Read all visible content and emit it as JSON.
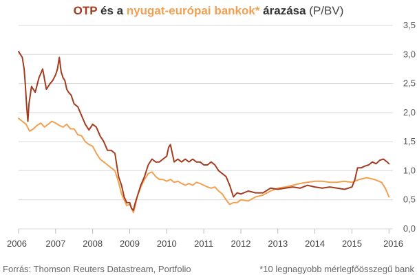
{
  "chart_data": {
    "type": "line",
    "title_parts": [
      {
        "text": "OTP",
        "role": "otp"
      },
      {
        "text": " és a ",
        "role": "plain"
      },
      {
        "text": "nyugat-európai bankok*",
        "role": "west"
      },
      {
        "text": " árazása",
        "role": "plain"
      },
      {
        "text": " (P/BV)",
        "role": "light"
      }
    ],
    "xlabel": "",
    "ylabel": "",
    "x_ticks": [
      "2006",
      "2007",
      "2008",
      "2009",
      "2010",
      "2011",
      "2012",
      "2013",
      "2014",
      "2015",
      "2016"
    ],
    "y_ticks": [
      "0,0",
      "0,5",
      "1,0",
      "1,5",
      "2,0",
      "2,5",
      "3,0",
      "3,5"
    ],
    "xlim": [
      2006,
      2016.05
    ],
    "ylim": [
      0,
      3.5
    ],
    "series": [
      {
        "name": "OTP",
        "color": "#a33b1e",
        "x": [
          2006.0,
          2006.05,
          2006.1,
          2006.15,
          2006.18,
          2006.22,
          2006.25,
          2006.28,
          2006.35,
          2006.45,
          2006.55,
          2006.65,
          2006.75,
          2006.85,
          2006.92,
          2007.0,
          2007.05,
          2007.1,
          2007.15,
          2007.2,
          2007.25,
          2007.3,
          2007.35,
          2007.42,
          2007.5,
          2007.6,
          2007.7,
          2007.8,
          2007.9,
          2008.0,
          2008.1,
          2008.2,
          2008.3,
          2008.4,
          2008.5,
          2008.6,
          2008.7,
          2008.78,
          2008.85,
          2008.92,
          2009.0,
          2009.05,
          2009.1,
          2009.15,
          2009.2,
          2009.3,
          2009.4,
          2009.5,
          2009.6,
          2009.7,
          2009.8,
          2009.9,
          2010.0,
          2010.05,
          2010.1,
          2010.15,
          2010.2,
          2010.3,
          2010.4,
          2010.5,
          2010.6,
          2010.7,
          2010.8,
          2010.9,
          2011.0,
          2011.1,
          2011.2,
          2011.3,
          2011.4,
          2011.5,
          2011.6,
          2011.7,
          2011.8,
          2011.9,
          2012.0,
          2012.2,
          2012.4,
          2012.6,
          2012.8,
          2013.0,
          2013.2,
          2013.4,
          2013.6,
          2013.8,
          2014.0,
          2014.2,
          2014.4,
          2014.6,
          2014.8,
          2014.9,
          2015.0,
          2015.08,
          2015.15,
          2015.25,
          2015.35,
          2015.45,
          2015.55,
          2015.65,
          2015.75,
          2015.85,
          2015.95,
          2016.0
        ],
        "values": [
          3.05,
          3.0,
          2.95,
          2.75,
          2.5,
          2.1,
          1.85,
          2.15,
          2.45,
          2.35,
          2.6,
          2.75,
          2.4,
          2.5,
          2.55,
          2.65,
          2.75,
          2.95,
          2.7,
          2.6,
          2.55,
          2.4,
          2.35,
          2.3,
          2.15,
          2.1,
          1.95,
          1.8,
          1.7,
          1.8,
          1.75,
          1.6,
          1.5,
          1.35,
          1.35,
          1.3,
          0.9,
          0.75,
          0.55,
          0.45,
          0.45,
          0.35,
          0.32,
          0.45,
          0.55,
          0.75,
          0.9,
          1.1,
          1.2,
          1.15,
          1.15,
          1.2,
          1.25,
          1.4,
          1.45,
          1.3,
          1.15,
          1.2,
          1.15,
          1.2,
          1.15,
          1.2,
          1.15,
          1.15,
          1.1,
          1.1,
          1.15,
          1.1,
          1.0,
          0.95,
          0.9,
          0.75,
          0.55,
          0.62,
          0.6,
          0.65,
          0.62,
          0.62,
          0.7,
          0.68,
          0.7,
          0.72,
          0.7,
          0.75,
          0.72,
          0.7,
          0.72,
          0.7,
          0.68,
          0.7,
          0.72,
          0.85,
          1.05,
          1.05,
          1.08,
          1.1,
          1.15,
          1.12,
          1.18,
          1.2,
          1.15,
          1.12
        ]
      },
      {
        "name": "nyugat-európai bankok*",
        "color": "#f2a050",
        "x": [
          2006.0,
          2006.1,
          2006.2,
          2006.3,
          2006.4,
          2006.5,
          2006.6,
          2006.7,
          2006.8,
          2006.9,
          2007.0,
          2007.1,
          2007.2,
          2007.3,
          2007.4,
          2007.5,
          2007.6,
          2007.7,
          2007.8,
          2007.9,
          2008.0,
          2008.1,
          2008.2,
          2008.3,
          2008.4,
          2008.5,
          2008.6,
          2008.7,
          2008.78,
          2008.85,
          2008.92,
          2009.0,
          2009.05,
          2009.1,
          2009.15,
          2009.2,
          2009.3,
          2009.4,
          2009.5,
          2009.6,
          2009.7,
          2009.8,
          2009.9,
          2010.0,
          2010.1,
          2010.2,
          2010.3,
          2010.4,
          2010.5,
          2010.6,
          2010.7,
          2010.8,
          2010.9,
          2011.0,
          2011.1,
          2011.2,
          2011.3,
          2011.4,
          2011.5,
          2011.6,
          2011.7,
          2011.8,
          2011.9,
          2012.0,
          2012.2,
          2012.4,
          2012.6,
          2012.8,
          2013.0,
          2013.2,
          2013.4,
          2013.6,
          2013.8,
          2014.0,
          2014.2,
          2014.4,
          2014.6,
          2014.8,
          2015.0,
          2015.2,
          2015.4,
          2015.6,
          2015.8,
          2015.9,
          2016.0
        ],
        "values": [
          1.9,
          1.85,
          1.8,
          1.68,
          1.72,
          1.78,
          1.82,
          1.75,
          1.8,
          1.85,
          1.82,
          1.78,
          1.75,
          1.8,
          1.72,
          1.72,
          1.62,
          1.6,
          1.5,
          1.45,
          1.42,
          1.3,
          1.2,
          1.15,
          1.1,
          1.05,
          1.0,
          0.8,
          0.6,
          0.5,
          0.4,
          0.42,
          0.35,
          0.28,
          0.4,
          0.55,
          0.72,
          0.85,
          0.95,
          0.98,
          0.9,
          0.85,
          0.85,
          0.82,
          0.85,
          0.8,
          0.82,
          0.78,
          0.75,
          0.78,
          0.75,
          0.8,
          0.78,
          0.75,
          0.72,
          0.7,
          0.72,
          0.65,
          0.6,
          0.5,
          0.42,
          0.45,
          0.45,
          0.5,
          0.48,
          0.55,
          0.58,
          0.65,
          0.7,
          0.72,
          0.75,
          0.78,
          0.8,
          0.82,
          0.82,
          0.8,
          0.8,
          0.82,
          0.8,
          0.85,
          0.88,
          0.85,
          0.8,
          0.7,
          0.55
        ]
      }
    ]
  },
  "footer": {
    "source": "Forrás: Thomson Reuters Datastream, Portfolio",
    "note": "*10 legnagyobb mérlegfőösszegű bank"
  },
  "colors": {
    "otp": "#a33b1e",
    "west": "#f2a050",
    "grid": "#d9d9d9",
    "text": "#333333"
  }
}
